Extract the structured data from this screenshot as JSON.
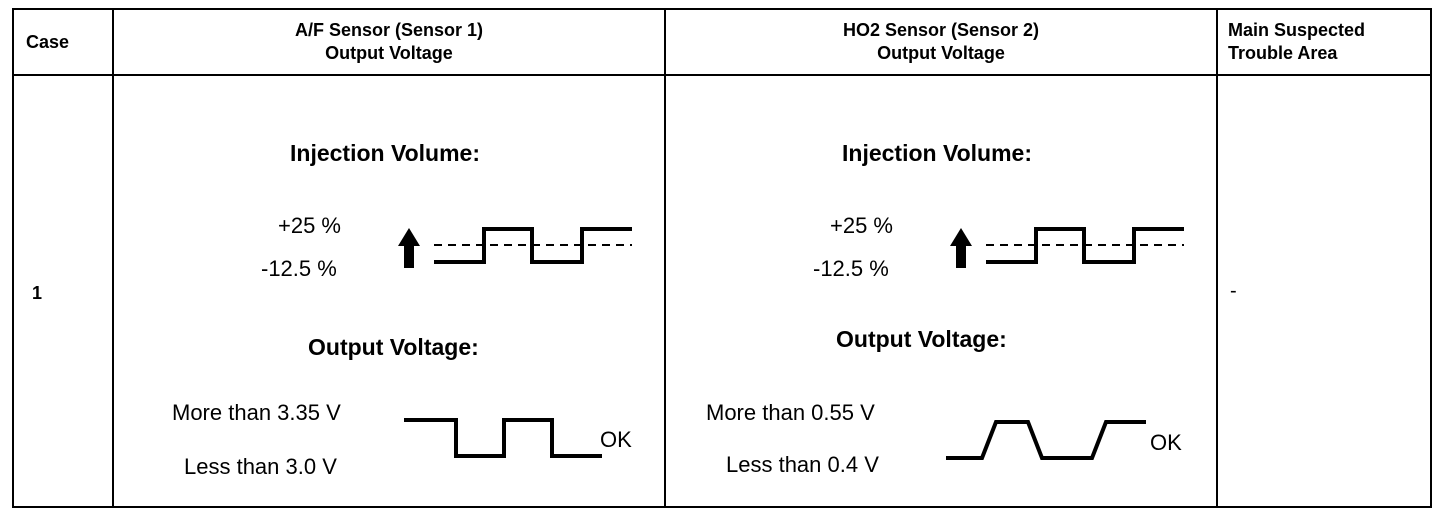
{
  "table": {
    "headers": {
      "case": "Case",
      "af_line1": "A/F Sensor (Sensor 1)",
      "af_line2": "Output Voltage",
      "ho2_line1": "HO2 Sensor (Sensor 2)",
      "ho2_line2": "Output Voltage",
      "trouble_line1": "Main Suspected",
      "trouble_line2": "Trouble Area"
    },
    "row": {
      "case": "1",
      "trouble_area": "-",
      "af": {
        "injection_title": "Injection Volume:",
        "inj_high": "+25 %",
        "inj_low": "-12.5 %",
        "output_title": "Output Voltage:",
        "out_high": "More than 3.35 V",
        "out_low": "Less than 3.0 V",
        "result": "OK"
      },
      "ho2": {
        "injection_title": "Injection Volume:",
        "inj_high": "+25 %",
        "inj_low": "-12.5 %",
        "output_title": "Output Voltage:",
        "out_high": "More than 0.55 V",
        "out_low": "Less than 0.4 V",
        "result": "OK"
      }
    }
  },
  "icons": {
    "increase_arrow": "up-arrow-icon"
  }
}
